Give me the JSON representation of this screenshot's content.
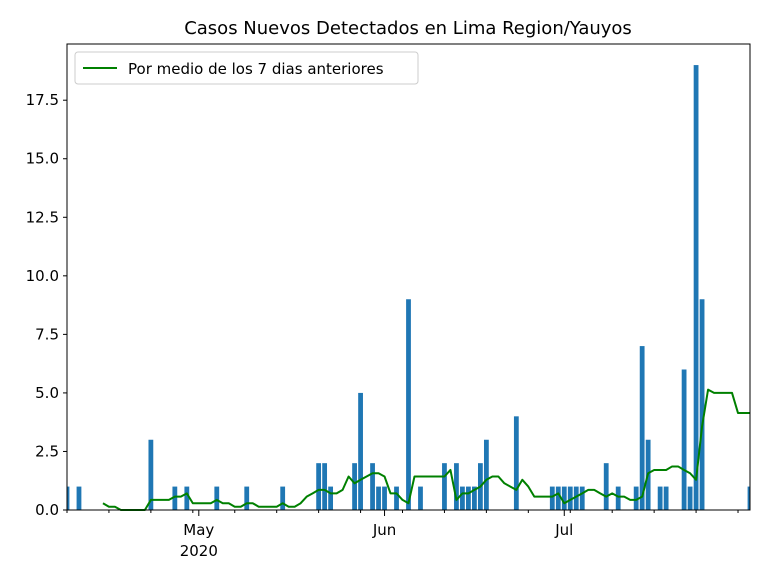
{
  "chart_data": {
    "type": "bar",
    "title": "Casos Nuevos Detectados en Lima Region/Yauyos",
    "xlabel": "",
    "ylabel": "",
    "x_range": [
      "2020-04-09",
      "2020-08-01"
    ],
    "ylim": [
      0,
      19.9
    ],
    "yticks": [
      0.0,
      2.5,
      5.0,
      7.5,
      10.0,
      12.5,
      15.0,
      17.5
    ],
    "xticks": [
      {
        "date": "2020-05-01",
        "label": "May",
        "sublabel": "2020"
      },
      {
        "date": "2020-06-01",
        "label": "Jun",
        "sublabel": ""
      },
      {
        "date": "2020-07-01",
        "label": "Jul",
        "sublabel": ""
      }
    ],
    "legend": {
      "position": "top-left"
    },
    "bar_color": "#1f77b4",
    "line_color": "#008000",
    "series": [
      {
        "kind": "bar",
        "points": [
          [
            "2020-04-09",
            1
          ],
          [
            "2020-04-11",
            1
          ],
          [
            "2020-04-23",
            3
          ],
          [
            "2020-04-27",
            1
          ],
          [
            "2020-04-29",
            1
          ],
          [
            "2020-05-04",
            1
          ],
          [
            "2020-05-09",
            1
          ],
          [
            "2020-05-15",
            1
          ],
          [
            "2020-05-21",
            2
          ],
          [
            "2020-05-22",
            2
          ],
          [
            "2020-05-23",
            1
          ],
          [
            "2020-05-27",
            2
          ],
          [
            "2020-05-28",
            5
          ],
          [
            "2020-05-30",
            2
          ],
          [
            "2020-05-31",
            1
          ],
          [
            "2020-06-01",
            1
          ],
          [
            "2020-06-03",
            1
          ],
          [
            "2020-06-05",
            9
          ],
          [
            "2020-06-07",
            1
          ],
          [
            "2020-06-11",
            2
          ],
          [
            "2020-06-13",
            2
          ],
          [
            "2020-06-14",
            1
          ],
          [
            "2020-06-15",
            1
          ],
          [
            "2020-06-16",
            1
          ],
          [
            "2020-06-17",
            2
          ],
          [
            "2020-06-18",
            3
          ],
          [
            "2020-06-23",
            4
          ],
          [
            "2020-06-29",
            1
          ],
          [
            "2020-06-30",
            1
          ],
          [
            "2020-07-01",
            1
          ],
          [
            "2020-07-02",
            1
          ],
          [
            "2020-07-03",
            1
          ],
          [
            "2020-07-04",
            1
          ],
          [
            "2020-07-08",
            2
          ],
          [
            "2020-07-10",
            1
          ],
          [
            "2020-07-13",
            1
          ],
          [
            "2020-07-14",
            7
          ],
          [
            "2020-07-15",
            3
          ],
          [
            "2020-07-17",
            1
          ],
          [
            "2020-07-18",
            1
          ],
          [
            "2020-07-21",
            6
          ],
          [
            "2020-07-22",
            1
          ],
          [
            "2020-07-23",
            19
          ],
          [
            "2020-07-24",
            9
          ],
          [
            "2020-08-01",
            1
          ]
        ]
      },
      {
        "kind": "line",
        "name": "Por medio de los 7 dias anteriores",
        "points": [
          [
            "2020-04-15",
            0.29
          ],
          [
            "2020-04-16",
            0.14
          ],
          [
            "2020-04-17",
            0.14
          ],
          [
            "2020-04-18",
            0.0
          ],
          [
            "2020-04-19",
            0.0
          ],
          [
            "2020-04-20",
            0.0
          ],
          [
            "2020-04-21",
            0.0
          ],
          [
            "2020-04-22",
            0.0
          ],
          [
            "2020-04-23",
            0.43
          ],
          [
            "2020-04-24",
            0.43
          ],
          [
            "2020-04-25",
            0.43
          ],
          [
            "2020-04-26",
            0.43
          ],
          [
            "2020-04-27",
            0.57
          ],
          [
            "2020-04-28",
            0.57
          ],
          [
            "2020-04-29",
            0.71
          ],
          [
            "2020-04-30",
            0.29
          ],
          [
            "2020-05-01",
            0.29
          ],
          [
            "2020-05-02",
            0.29
          ],
          [
            "2020-05-03",
            0.29
          ],
          [
            "2020-05-04",
            0.43
          ],
          [
            "2020-05-05",
            0.29
          ],
          [
            "2020-05-06",
            0.29
          ],
          [
            "2020-05-07",
            0.14
          ],
          [
            "2020-05-08",
            0.14
          ],
          [
            "2020-05-09",
            0.29
          ],
          [
            "2020-05-10",
            0.29
          ],
          [
            "2020-05-11",
            0.14
          ],
          [
            "2020-05-12",
            0.14
          ],
          [
            "2020-05-13",
            0.14
          ],
          [
            "2020-05-14",
            0.14
          ],
          [
            "2020-05-15",
            0.29
          ],
          [
            "2020-05-16",
            0.14
          ],
          [
            "2020-05-17",
            0.14
          ],
          [
            "2020-05-18",
            0.29
          ],
          [
            "2020-05-19",
            0.57
          ],
          [
            "2020-05-20",
            0.71
          ],
          [
            "2020-05-21",
            0.86
          ],
          [
            "2020-05-22",
            0.86
          ],
          [
            "2020-05-23",
            0.71
          ],
          [
            "2020-05-24",
            0.71
          ],
          [
            "2020-05-25",
            0.86
          ],
          [
            "2020-05-26",
            1.43
          ],
          [
            "2020-05-27",
            1.14
          ],
          [
            "2020-05-28",
            1.29
          ],
          [
            "2020-05-29",
            1.43
          ],
          [
            "2020-05-30",
            1.57
          ],
          [
            "2020-05-31",
            1.57
          ],
          [
            "2020-06-01",
            1.43
          ],
          [
            "2020-06-02",
            0.71
          ],
          [
            "2020-06-03",
            0.71
          ],
          [
            "2020-06-04",
            0.43
          ],
          [
            "2020-06-05",
            0.29
          ],
          [
            "2020-06-06",
            1.43
          ],
          [
            "2020-06-07",
            1.43
          ],
          [
            "2020-06-08",
            1.43
          ],
          [
            "2020-06-09",
            1.43
          ],
          [
            "2020-06-10",
            1.43
          ],
          [
            "2020-06-11",
            1.43
          ],
          [
            "2020-06-12",
            1.71
          ],
          [
            "2020-06-13",
            0.43
          ],
          [
            "2020-06-14",
            0.71
          ],
          [
            "2020-06-15",
            0.71
          ],
          [
            "2020-06-16",
            0.86
          ],
          [
            "2020-06-17",
            1.0
          ],
          [
            "2020-06-18",
            1.29
          ],
          [
            "2020-06-19",
            1.43
          ],
          [
            "2020-06-20",
            1.43
          ],
          [
            "2020-06-21",
            1.14
          ],
          [
            "2020-06-22",
            1.0
          ],
          [
            "2020-06-23",
            0.86
          ],
          [
            "2020-06-24",
            1.29
          ],
          [
            "2020-06-25",
            1.0
          ],
          [
            "2020-06-26",
            0.57
          ],
          [
            "2020-06-27",
            0.57
          ],
          [
            "2020-06-28",
            0.57
          ],
          [
            "2020-06-29",
            0.57
          ],
          [
            "2020-06-30",
            0.71
          ],
          [
            "2020-07-01",
            0.29
          ],
          [
            "2020-07-02",
            0.43
          ],
          [
            "2020-07-03",
            0.57
          ],
          [
            "2020-07-04",
            0.71
          ],
          [
            "2020-07-05",
            0.86
          ],
          [
            "2020-07-06",
            0.86
          ],
          [
            "2020-07-07",
            0.71
          ],
          [
            "2020-07-08",
            0.57
          ],
          [
            "2020-07-09",
            0.71
          ],
          [
            "2020-07-10",
            0.57
          ],
          [
            "2020-07-11",
            0.57
          ],
          [
            "2020-07-12",
            0.43
          ],
          [
            "2020-07-13",
            0.43
          ],
          [
            "2020-07-14",
            0.57
          ],
          [
            "2020-07-15",
            1.57
          ],
          [
            "2020-07-16",
            1.71
          ],
          [
            "2020-07-17",
            1.71
          ],
          [
            "2020-07-18",
            1.71
          ],
          [
            "2020-07-19",
            1.86
          ],
          [
            "2020-07-20",
            1.86
          ],
          [
            "2020-07-21",
            1.71
          ],
          [
            "2020-07-22",
            1.57
          ],
          [
            "2020-07-23",
            1.29
          ],
          [
            "2020-07-24",
            3.57
          ],
          [
            "2020-07-25",
            5.14
          ],
          [
            "2020-07-26",
            5.0
          ],
          [
            "2020-07-27",
            5.0
          ],
          [
            "2020-07-28",
            5.0
          ],
          [
            "2020-07-29",
            5.0
          ],
          [
            "2020-07-30",
            4.14
          ],
          [
            "2020-07-31",
            4.14
          ],
          [
            "2020-08-01",
            4.14
          ]
        ]
      }
    ]
  }
}
